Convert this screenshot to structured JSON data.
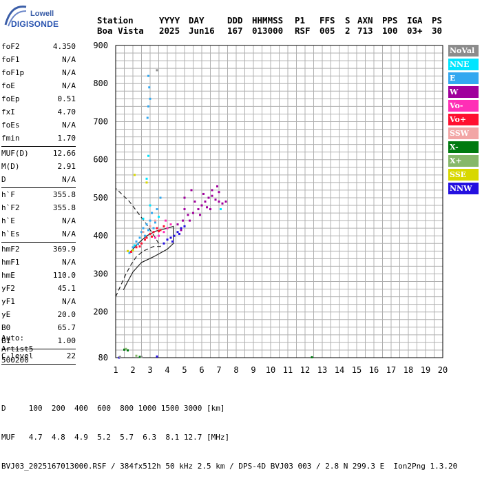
{
  "logo": {
    "line1": "Lowell",
    "line2": "DIGISONDE"
  },
  "header": {
    "labels": [
      "Station",
      "YYYY",
      "DAY",
      "DDD",
      "HHMMSS",
      "P1",
      "FFS",
      "S",
      "AXN",
      "PPS",
      "IGA",
      "PS"
    ],
    "values": [
      "Boa Vista",
      "2025",
      "Jun16",
      "167",
      "013000",
      "RSF",
      "005",
      "2",
      "713",
      "100",
      "03+",
      "30"
    ]
  },
  "params": {
    "group1": [
      {
        "name": "foF2",
        "value": "4.350"
      },
      {
        "name": "foF1",
        "value": "N/A"
      },
      {
        "name": "foF1p",
        "value": "N/A"
      },
      {
        "name": "foE",
        "value": "N/A"
      },
      {
        "name": "foEp",
        "value": "0.51"
      },
      {
        "name": "fxI",
        "value": "4.70"
      },
      {
        "name": "foEs",
        "value": "N/A"
      },
      {
        "name": "fmin",
        "value": "1.70"
      }
    ],
    "group2": [
      {
        "name": "MUF(D)",
        "value": "12.66"
      },
      {
        "name": "M(D)",
        "value": "2.91"
      },
      {
        "name": "D",
        "value": "N/A"
      }
    ],
    "group3": [
      {
        "name": "h`F",
        "value": "355.8"
      },
      {
        "name": "h`F2",
        "value": "355.8"
      },
      {
        "name": "h`E",
        "value": "N/A"
      },
      {
        "name": "h`Es",
        "value": "N/A"
      }
    ],
    "group4": [
      {
        "name": "hmF2",
        "value": "369.9"
      },
      {
        "name": "hmF1",
        "value": "N/A"
      },
      {
        "name": "hmE",
        "value": "110.0"
      },
      {
        "name": "yF2",
        "value": "45.1"
      },
      {
        "name": "yF1",
        "value": "N/A"
      },
      {
        "name": "yE",
        "value": "20.0"
      },
      {
        "name": "B0",
        "value": "65.7"
      },
      {
        "name": "B1",
        "value": "1.00"
      }
    ],
    "group5": [
      {
        "name": "C-level",
        "value": "22"
      }
    ]
  },
  "auto": {
    "line1": "Auto:",
    "line2": "Artist5",
    "line3": "500200"
  },
  "legend": [
    {
      "label": "NoVal",
      "color": "#8c8c8c"
    },
    {
      "label": "NNE",
      "color": "#00e5ff"
    },
    {
      "label": "E",
      "color": "#33a8f0"
    },
    {
      "label": "W",
      "color": "#a0009c"
    },
    {
      "label": "Vo-",
      "color": "#ff2fb6"
    },
    {
      "label": "Vo+",
      "color": "#ff1030"
    },
    {
      "label": "SSW",
      "color": "#f2a6a6"
    },
    {
      "label": "X-",
      "color": "#007a10"
    },
    {
      "label": "X+",
      "color": "#86b86a"
    },
    {
      "label": "SSE",
      "color": "#d8d800"
    },
    {
      "label": "NNW",
      "color": "#2410e0"
    }
  ],
  "chart_data": {
    "type": "scatter",
    "xlim": [
      1,
      20
    ],
    "ylim": [
      80,
      900
    ],
    "x_ticks": [
      1,
      2,
      3,
      4,
      5,
      6,
      7,
      8,
      9,
      10,
      11,
      12,
      13,
      14,
      15,
      16,
      17,
      18,
      19,
      20
    ],
    "y_ticks": [
      80,
      200,
      300,
      400,
      500,
      600,
      700,
      800,
      900
    ],
    "grid": true,
    "series": [
      {
        "name": "E",
        "color": "#33a8f0",
        "points": [
          [
            1.8,
            355
          ],
          [
            2.0,
            370
          ],
          [
            2.2,
            385
          ],
          [
            2.4,
            395
          ],
          [
            2.5,
            410
          ],
          [
            2.6,
            420
          ],
          [
            2.7,
            400
          ],
          [
            2.8,
            430
          ],
          [
            2.9,
            415
          ],
          [
            3.0,
            440
          ],
          [
            3.1,
            460
          ],
          [
            3.2,
            420
          ],
          [
            3.3,
            435
          ],
          [
            2.9,
            820
          ],
          [
            2.95,
            790
          ],
          [
            3.0,
            760
          ],
          [
            2.9,
            740
          ],
          [
            2.85,
            710
          ],
          [
            2.0,
            362
          ],
          [
            2.3,
            378
          ],
          [
            3.4,
            470
          ],
          [
            3.6,
            500
          ]
        ]
      },
      {
        "name": "NNE",
        "color": "#00e5ff",
        "points": [
          [
            2.1,
            375
          ],
          [
            2.6,
            445
          ],
          [
            3.0,
            480
          ],
          [
            2.8,
            550
          ],
          [
            2.9,
            610
          ],
          [
            7.1,
            470
          ],
          [
            3.5,
            450
          ]
        ]
      },
      {
        "name": "W",
        "color": "#a0009c",
        "points": [
          [
            4.6,
            430
          ],
          [
            4.9,
            440
          ],
          [
            5.2,
            455
          ],
          [
            5.5,
            460
          ],
          [
            5.8,
            470
          ],
          [
            6.0,
            480
          ],
          [
            6.2,
            490
          ],
          [
            6.4,
            500
          ],
          [
            6.6,
            505
          ],
          [
            6.8,
            495
          ],
          [
            7.0,
            490
          ],
          [
            7.2,
            485
          ],
          [
            5.0,
            470
          ],
          [
            5.6,
            490
          ],
          [
            6.1,
            510
          ],
          [
            6.6,
            520
          ],
          [
            7.0,
            515
          ],
          [
            5.3,
            440
          ],
          [
            5.9,
            455
          ],
          [
            6.5,
            470
          ],
          [
            4.8,
            415
          ],
          [
            6.3,
            475
          ],
          [
            5.0,
            500
          ],
          [
            5.4,
            520
          ],
          [
            6.9,
            530
          ],
          [
            7.4,
            490
          ]
        ]
      },
      {
        "name": "Vo-",
        "color": "#ff2fb6",
        "points": [
          [
            3.5,
            400
          ],
          [
            3.8,
            410
          ],
          [
            4.0,
            420
          ],
          [
            4.2,
            430
          ],
          [
            3.3,
            395
          ],
          [
            3.9,
            440
          ]
        ]
      },
      {
        "name": "Vo+",
        "color": "#ff1030",
        "points": [
          [
            1.9,
            358
          ],
          [
            2.2,
            370
          ],
          [
            2.5,
            380
          ],
          [
            2.8,
            395
          ],
          [
            3.0,
            405
          ],
          [
            3.2,
            410
          ],
          [
            3.4,
            420
          ],
          [
            3.6,
            415
          ],
          [
            3.8,
            425
          ],
          [
            2.7,
            390
          ],
          [
            3.1,
            398
          ],
          [
            3.5,
            412
          ],
          [
            2.4,
            372
          ]
        ]
      },
      {
        "name": "SSW",
        "color": "#f2a6a6",
        "points": [
          [
            2.6,
            410
          ],
          [
            3.0,
            425
          ],
          [
            3.3,
            440
          ]
        ]
      },
      {
        "name": "X-",
        "color": "#007a10",
        "points": [
          [
            1.5,
            101
          ],
          [
            1.7,
            99
          ],
          [
            2.4,
            82
          ],
          [
            12.4,
            81
          ]
        ]
      },
      {
        "name": "X+",
        "color": "#86b86a",
        "points": [
          [
            1.6,
            103
          ],
          [
            2.2,
            85
          ]
        ]
      },
      {
        "name": "SSE",
        "color": "#d8d800",
        "points": [
          [
            2.1,
            560
          ],
          [
            2.8,
            540
          ],
          [
            1.7,
            360
          ],
          [
            2.0,
            362
          ]
        ]
      },
      {
        "name": "NNW",
        "color": "#2410e0",
        "points": [
          [
            3.8,
            380
          ],
          [
            4.0,
            390
          ],
          [
            4.2,
            395
          ],
          [
            4.4,
            400
          ],
          [
            4.6,
            410
          ],
          [
            4.8,
            420
          ],
          [
            5.0,
            425
          ],
          [
            4.3,
            385
          ],
          [
            4.7,
            405
          ],
          [
            1.2,
            80
          ],
          [
            3.4,
            83
          ]
        ]
      },
      {
        "name": "NoVal",
        "color": "#8c8c8c",
        "points": [
          [
            1.25,
            82
          ],
          [
            2.5,
            82
          ],
          [
            3.4,
            835
          ]
        ]
      }
    ],
    "profile_dashed": [
      [
        1,
        240
      ],
      [
        1.3,
        270
      ],
      [
        1.6,
        300
      ],
      [
        1.9,
        325
      ],
      [
        2.2,
        345
      ],
      [
        2.6,
        360
      ],
      [
        3.2,
        372
      ],
      [
        3.6,
        372
      ],
      [
        3.3,
        395
      ],
      [
        2.8,
        430
      ],
      [
        2.3,
        460
      ],
      [
        1.8,
        490
      ],
      [
        1.0,
        525
      ]
    ],
    "profile_solid": [
      [
        1.8,
        355
      ],
      [
        2.3,
        380
      ],
      [
        2.8,
        400
      ],
      [
        3.3,
        412
      ],
      [
        4.0,
        420
      ],
      [
        4.35,
        425
      ],
      [
        4.35,
        380
      ],
      [
        4.0,
        365
      ],
      [
        3.2,
        345
      ],
      [
        2.5,
        330
      ],
      [
        2.0,
        305
      ],
      [
        1.7,
        280
      ],
      [
        1.45,
        258
      ]
    ]
  },
  "footer": {
    "line1": "D     100  200  400  600  800 1000 1500 3000 [km]",
    "line2": "MUF   4.7  4.8  4.9  5.2  5.7  6.3  8.1 12.7 [MHz]",
    "line3": "BVJ03_2025167013000.RSF / 384fx512h 50 kHz 2.5 km / DPS-4D BVJ03 003 / 2.8 N 299.3 E  Ion2Png 1.3.20"
  }
}
